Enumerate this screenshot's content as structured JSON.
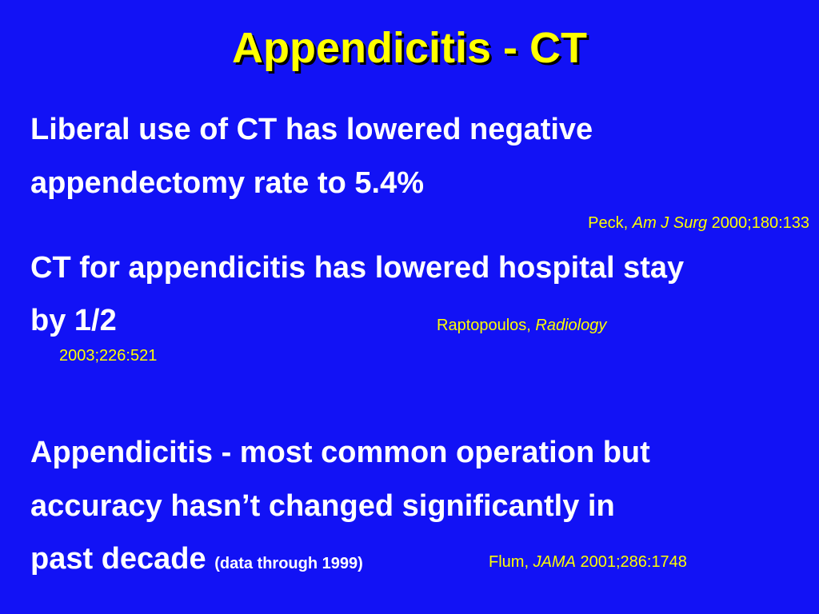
{
  "slide": {
    "title": "Appendicitis - CT",
    "point1": {
      "line1": "Liberal use of CT has lowered negative",
      "line2": "appendectomy rate to 5.4%",
      "cite_author": "Peck, ",
      "cite_journal": "Am J Surg",
      "cite_ref": " 2000;180:133"
    },
    "point2": {
      "line1": "CT for appendicitis has lowered hospital stay",
      "line2": "by 1/2",
      "cite_author": "Raptopoulos, ",
      "cite_journal": "Radiology",
      "cite_ref": "2003;226:521"
    },
    "point3": {
      "line1": "Appendicitis - most common operation but",
      "line2": "accuracy hasn’t changed significantly in",
      "line3": "past decade",
      "note": "(data through 1999)",
      "cite_author": "Flum, ",
      "cite_journal": "JAMA",
      "cite_ref": " 2001;286:1748"
    }
  }
}
